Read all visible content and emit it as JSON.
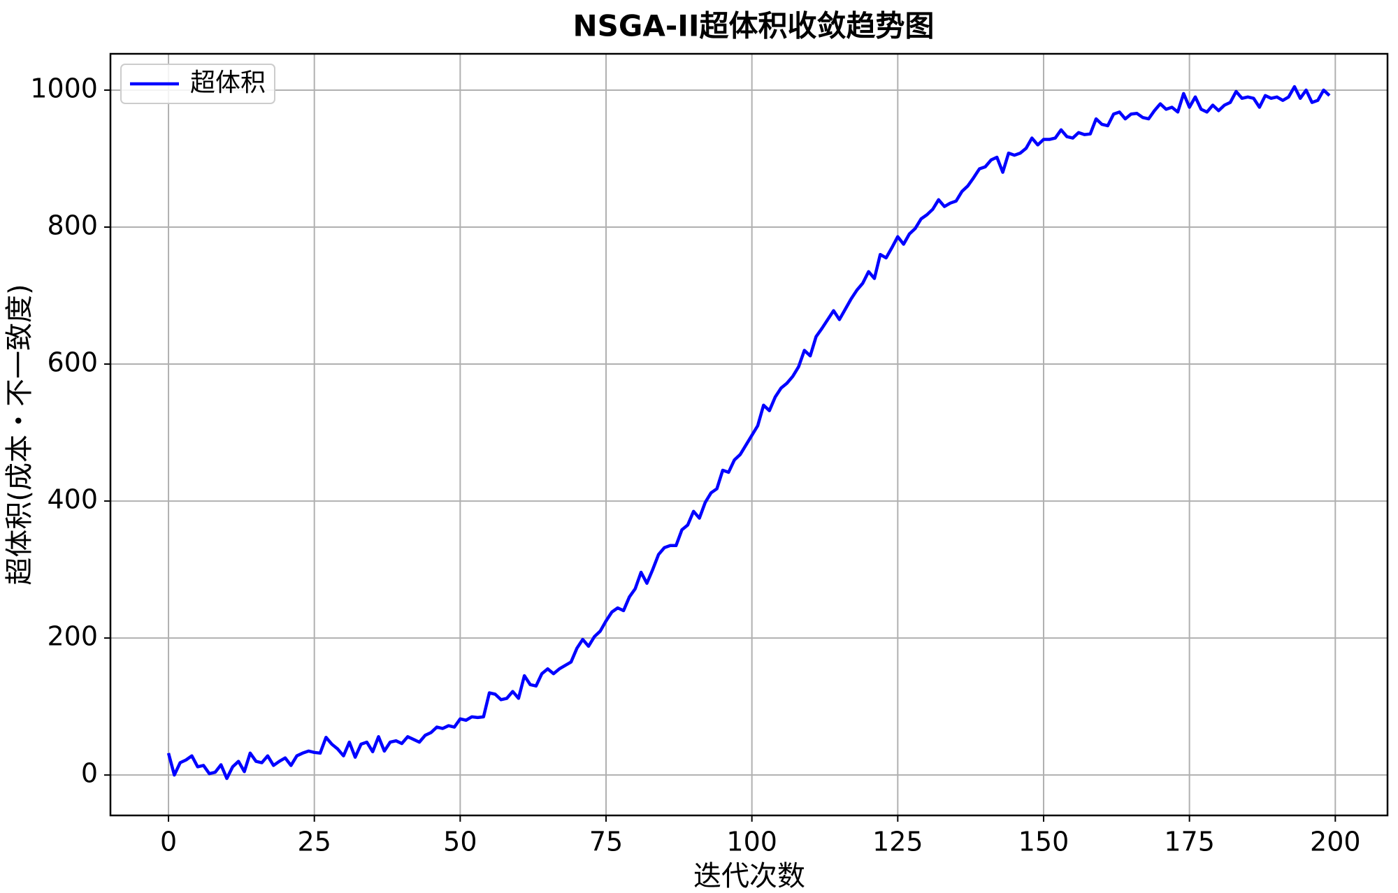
{
  "chart_data": {
    "type": "line",
    "title": "NSGA-II超体积收敛趋势图",
    "xlabel": "迭代次数",
    "ylabel": "超体积(成本・不一致度)",
    "x": [
      0,
      1,
      2,
      3,
      4,
      5,
      6,
      7,
      8,
      9,
      10,
      11,
      12,
      13,
      14,
      15,
      16,
      17,
      18,
      19,
      20,
      21,
      22,
      23,
      24,
      25,
      26,
      27,
      28,
      29,
      30,
      31,
      32,
      33,
      34,
      35,
      36,
      37,
      38,
      39,
      40,
      41,
      42,
      43,
      44,
      45,
      46,
      47,
      48,
      49,
      50,
      51,
      52,
      53,
      54,
      55,
      56,
      57,
      58,
      59,
      60,
      61,
      62,
      63,
      64,
      65,
      66,
      67,
      68,
      69,
      70,
      71,
      72,
      73,
      74,
      75,
      76,
      77,
      78,
      79,
      80,
      81,
      82,
      83,
      84,
      85,
      86,
      87,
      88,
      89,
      90,
      91,
      92,
      93,
      94,
      95,
      96,
      97,
      98,
      99,
      100,
      101,
      102,
      103,
      104,
      105,
      106,
      107,
      108,
      109,
      110,
      111,
      112,
      113,
      114,
      115,
      116,
      117,
      118,
      119,
      120,
      121,
      122,
      123,
      124,
      125,
      126,
      127,
      128,
      129,
      130,
      131,
      132,
      133,
      134,
      135,
      136,
      137,
      138,
      139,
      140,
      141,
      142,
      143,
      144,
      145,
      146,
      147,
      148,
      149,
      150,
      151,
      152,
      153,
      154,
      155,
      156,
      157,
      158,
      159,
      160,
      161,
      162,
      163,
      164,
      165,
      166,
      167,
      168,
      169,
      170,
      171,
      172,
      173,
      174,
      175,
      176,
      177,
      178,
      179,
      180,
      181,
      182,
      183,
      184,
      185,
      186,
      187,
      188,
      189,
      190,
      191,
      192,
      193,
      194,
      195,
      196,
      197,
      198,
      199
    ],
    "series": [
      {
        "name": "超体积",
        "color": "#0000ff",
        "values": [
          32,
          0,
          18,
          22,
          28,
          12,
          14,
          2,
          4,
          15,
          -5,
          12,
          20,
          5,
          32,
          20,
          18,
          28,
          14,
          20,
          25,
          14,
          28,
          32,
          35,
          33,
          32,
          55,
          45,
          38,
          28,
          48,
          26,
          45,
          48,
          34,
          56,
          35,
          48,
          50,
          46,
          56,
          52,
          48,
          58,
          62,
          70,
          68,
          72,
          70,
          82,
          80,
          85,
          84,
          85,
          120,
          118,
          110,
          112,
          122,
          112,
          145,
          132,
          130,
          148,
          155,
          148,
          155,
          160,
          165,
          185,
          198,
          188,
          202,
          210,
          225,
          238,
          244,
          240,
          260,
          272,
          296,
          280,
          300,
          322,
          332,
          335,
          335,
          358,
          365,
          385,
          375,
          398,
          412,
          418,
          445,
          442,
          460,
          468,
          482,
          496,
          510,
          540,
          532,
          552,
          565,
          572,
          582,
          596,
          620,
          612,
          640,
          652,
          665,
          678,
          665,
          680,
          695,
          708,
          718,
          735,
          725,
          760,
          755,
          770,
          786,
          775,
          790,
          798,
          812,
          818,
          826,
          840,
          830,
          835,
          838,
          852,
          860,
          872,
          885,
          888,
          898,
          902,
          880,
          908,
          905,
          908,
          915,
          930,
          920,
          928,
          928,
          930,
          942,
          932,
          930,
          938,
          935,
          936,
          958,
          950,
          948,
          965,
          968,
          958,
          965,
          966,
          960,
          958,
          970,
          980,
          972,
          975,
          968,
          995,
          975,
          990,
          972,
          968,
          978,
          970,
          978,
          982,
          998,
          988,
          990,
          988,
          975,
          992,
          988,
          990,
          985,
          990,
          1005,
          988,
          1000,
          982,
          985,
          1000,
          992
        ]
      }
    ],
    "xlim": [
      -9.95,
      208.95
    ],
    "ylim": [
      -59,
      1053
    ],
    "xticks": [
      0,
      25,
      50,
      75,
      100,
      125,
      150,
      175,
      200
    ],
    "yticks": [
      0,
      200,
      400,
      600,
      800,
      1000
    ],
    "grid": true,
    "legend": "upper left"
  }
}
